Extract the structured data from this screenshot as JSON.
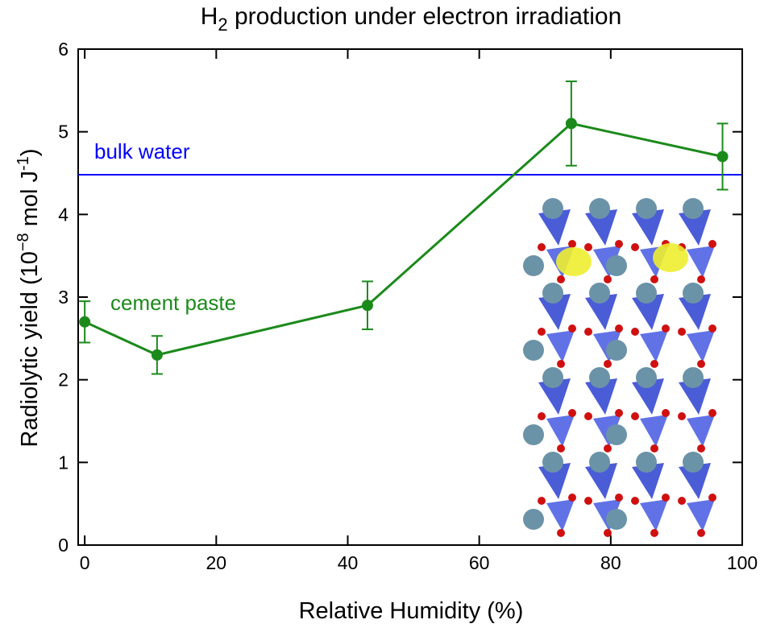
{
  "chart_data": {
    "type": "line",
    "title": {
      "main": "H",
      "sub": "2",
      "rest": " production under electron irradiation"
    },
    "xlabel": "Relative Humidity (%)",
    "ylabel": [
      {
        "text": "Radiolytic yield (10"
      },
      {
        "text": "−8",
        "sup": true
      },
      {
        "text": " mol J"
      },
      {
        "text": "-1",
        "sup": true
      },
      {
        "text": ")"
      }
    ],
    "x": [
      0,
      11,
      43,
      74,
      97
    ],
    "series": [
      {
        "name": "cement paste",
        "color": "#1b8a1b",
        "values": [
          2.7,
          2.3,
          2.9,
          5.1,
          4.7
        ],
        "errors": [
          0.25,
          0.23,
          0.29,
          0.51,
          0.4
        ]
      }
    ],
    "hline": {
      "name": "bulk water",
      "value": 4.48,
      "color": "#0000ff"
    },
    "xlim": [
      -1,
      100
    ],
    "xticks": [
      0,
      20,
      40,
      60,
      80,
      100
    ],
    "ylim": [
      0,
      6
    ],
    "yticks": [
      0,
      1,
      2,
      3,
      4,
      5,
      6
    ]
  }
}
